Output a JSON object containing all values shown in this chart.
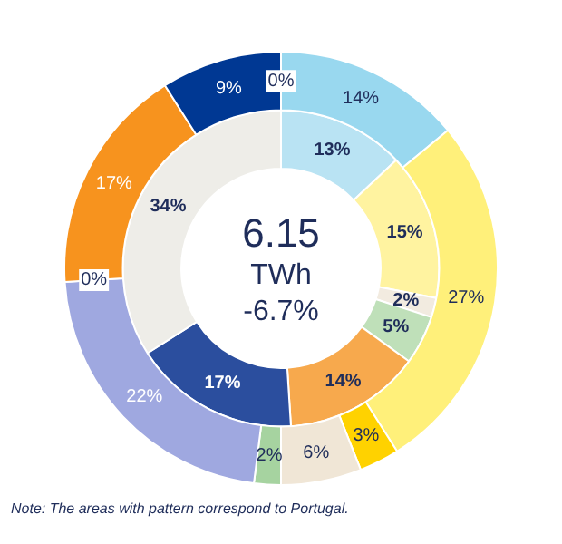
{
  "chart_data": {
    "type": "donut",
    "data_labels": true,
    "legend": false,
    "series": [
      {
        "values": [
          0,
          14,
          27,
          3,
          6,
          2,
          22,
          0,
          17,
          9
        ],
        "value_labels": [
          "0%",
          "14%",
          "27%",
          "3%",
          "6%",
          "2%",
          "22%",
          "0%",
          "17%",
          "9%"
        ],
        "colors": [
          "#d9d9d9",
          "#99d8ef",
          "#fff07a",
          "#ffd200",
          "#f0e6d6",
          "#a6d3a0",
          "#9fa8e0",
          "#9fa8e0",
          "#f7931e",
          "#003893"
        ]
      },
      {
        "values": [
          13,
          15,
          2,
          5,
          14,
          17,
          34
        ],
        "value_labels": [
          "13%",
          "15%",
          "2%",
          "5%",
          "14%",
          "17%",
          "34%"
        ],
        "colors": [
          "#b9e3f3",
          "#fff3a0",
          "#f2ebe0",
          "#bfe0b9",
          "#f7a94d",
          "#2b4e9e",
          "#eeede8"
        ]
      }
    ],
    "annotations": [
      "6.15",
      "TWh",
      "-6.7%",
      "Note: The  areas with pattern correspond  to Portugal."
    ]
  }
}
